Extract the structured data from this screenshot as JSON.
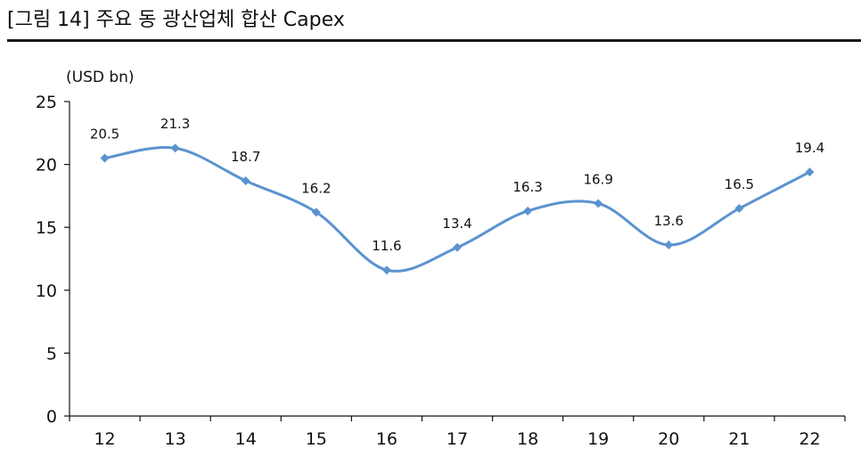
{
  "chart_data": {
    "type": "line",
    "title": "[그림 14] 주요 동 광산업체 합산 Capex",
    "ylabel": "(USD bn)",
    "xlabel": "",
    "categories": [
      "12",
      "13",
      "14",
      "15",
      "16",
      "17",
      "18",
      "19",
      "20",
      "21",
      "22"
    ],
    "series": [
      {
        "values": [
          20.5,
          21.3,
          18.7,
          16.2,
          11.6,
          13.4,
          16.3,
          16.9,
          13.6,
          16.5,
          19.4
        ]
      }
    ],
    "ylim": [
      0,
      25
    ],
    "yticks": [
      0,
      5,
      10,
      15,
      20,
      25
    ],
    "grid": false,
    "smooth": true,
    "line_color": "#5b93cf",
    "marker": "diamond"
  }
}
